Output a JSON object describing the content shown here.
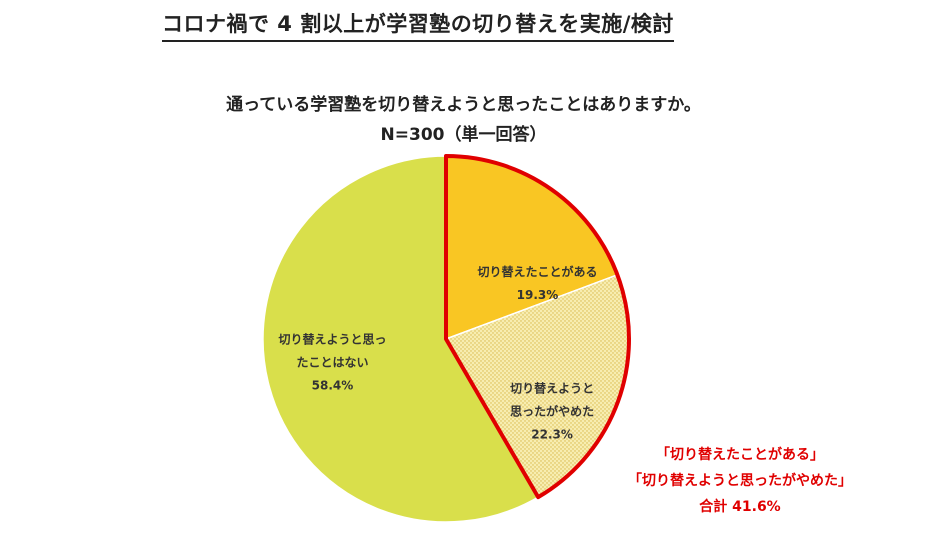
{
  "title": "コロナ禍で 4 割以上が学習塾の切り替えを実施/検討",
  "question": "通っている学習塾を切り替えようと思ったことはありますか。",
  "sample_note": "N=300（単一回答）",
  "colors": {
    "switched": "#f9c623",
    "considered": "#f7edb0",
    "not": "#d9df4b",
    "highlight": "#e00000"
  },
  "chart_data": {
    "type": "pie",
    "unit": "%",
    "slices": [
      {
        "label_lines": [
          "切り替えたことがある"
        ],
        "value": 19.3,
        "value_label": "19.3%",
        "color_key": "switched"
      },
      {
        "label_lines": [
          "切り替えようと",
          "思ったがやめた"
        ],
        "value": 22.3,
        "value_label": "22.3%",
        "color_key": "considered",
        "pattern": "dotted"
      },
      {
        "label_lines": [
          "切り替えようと思っ",
          "たことはない"
        ],
        "value": 58.4,
        "value_label": "58.4%",
        "color_key": "not"
      }
    ],
    "annotation": {
      "lines": [
        "「切り替えたことがある」",
        "「切り替えようと思ったがやめた」"
      ],
      "total_label": "合計 41.6%"
    }
  }
}
